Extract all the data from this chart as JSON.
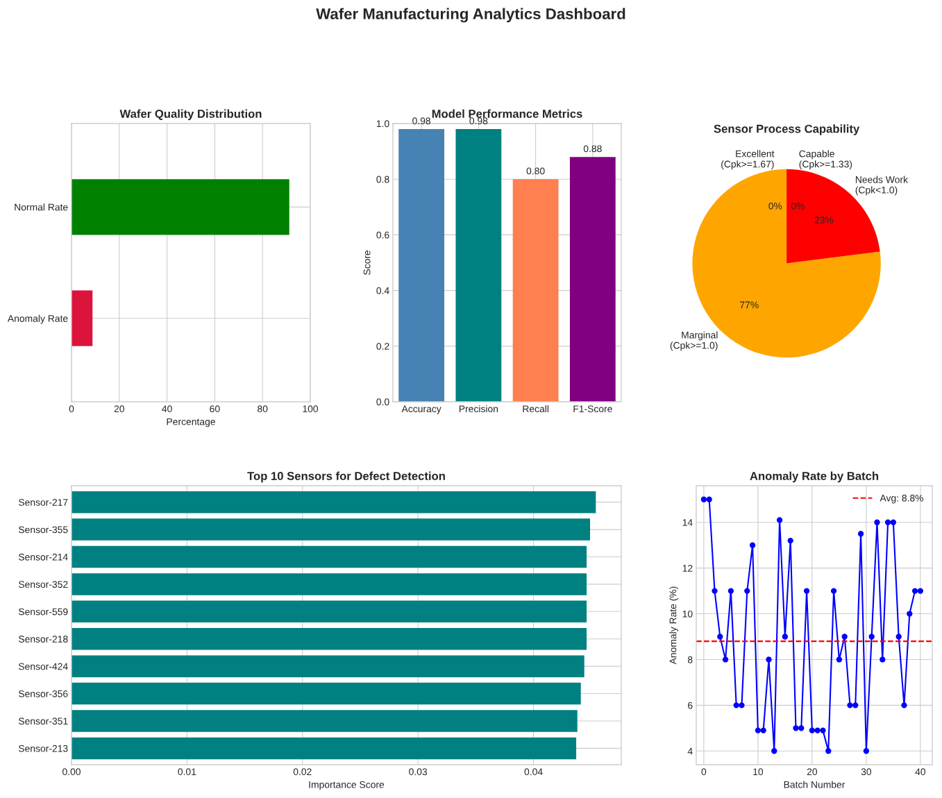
{
  "chart_data": [
    {
      "type": "bar",
      "annotations": [
        "Wafer Manufacturing Analytics Dashboard"
      ],
      "title": "Wafer Quality Distribution",
      "orientation": "horizontal",
      "categories": [
        "Normal Rate",
        "Anomaly Rate"
      ],
      "values": [
        91.2,
        8.8
      ],
      "colors": [
        "#008000",
        "#dc143c"
      ],
      "xlabel": "Percentage",
      "xlim": [
        0,
        100
      ],
      "xticks": [
        0,
        20,
        40,
        60,
        80,
        100
      ],
      "grid": true
    },
    {
      "type": "bar",
      "title": "Model Performance Metrics",
      "categories": [
        "Accuracy",
        "Precision",
        "Recall",
        "F1-Score"
      ],
      "values": [
        0.98,
        0.98,
        0.8,
        0.88
      ],
      "colors": [
        "#4682b4",
        "#008080",
        "#ff7f50",
        "#800080"
      ],
      "ylabel": "Score",
      "ylim": [
        0,
        1.0
      ],
      "yticks": [
        {
          "value": 0,
          "label": "0.0"
        },
        0.2,
        0.4,
        0.6,
        0.8,
        {
          "value": 1.0,
          "label": "1.0"
        }
      ],
      "value_labels": [
        "0.98",
        "0.98",
        "0.80",
        "0.88"
      ],
      "grid": true
    },
    {
      "type": "pie",
      "title": "Sensor Process Capability",
      "categories": [
        "Excellent\n(Cpk>=1.67)",
        "Capable\n(Cpk>=1.33)",
        "Marginal\n(Cpk>=1.0)",
        "Needs Work\n(Cpk<1.0)"
      ],
      "values": [
        0,
        0,
        77,
        23
      ],
      "colors": [
        "#008000",
        "#0000ff",
        "#ffa500",
        "#ff0000"
      ],
      "value_labels": [
        "0%",
        "0%",
        "77%",
        "23%"
      ]
    },
    {
      "type": "bar",
      "title": "Top 10 Sensors for Defect Detection",
      "orientation": "horizontal",
      "categories": [
        "Sensor-217",
        "Sensor-355",
        "Sensor-214",
        "Sensor-352",
        "Sensor-559",
        "Sensor-218",
        "Sensor-424",
        "Sensor-356",
        "Sensor-351",
        "Sensor-213"
      ],
      "values": [
        0.0454,
        0.0449,
        0.0446,
        0.0446,
        0.0446,
        0.0446,
        0.0444,
        0.0441,
        0.0438,
        0.0437
      ],
      "color": "#008080",
      "xlabel": "Importance Score",
      "xlim": [
        0,
        0.0476
      ],
      "xticks": [
        {
          "value": 0,
          "label": "0.00"
        },
        0.01,
        0.02,
        0.03,
        0.04
      ],
      "grid": true
    },
    {
      "type": "line",
      "title": "Anomaly Rate by Batch",
      "xlabel": "Batch Number",
      "ylabel": "Anomaly Rate (%)",
      "x": [
        0,
        1,
        2,
        3,
        4,
        5,
        6,
        7,
        8,
        9,
        10,
        11,
        12,
        13,
        14,
        15,
        16,
        17,
        18,
        19,
        20,
        21,
        22,
        23,
        24,
        25,
        26,
        27,
        28,
        29,
        30,
        31,
        32,
        33,
        34,
        35,
        36,
        37,
        38,
        39,
        40
      ],
      "values": [
        15,
        15,
        11,
        9,
        8,
        11,
        6,
        6,
        11,
        13,
        4.9,
        4.9,
        8,
        4,
        14.1,
        9,
        13.2,
        5,
        5,
        11,
        4.9,
        4.9,
        4.9,
        4,
        11,
        8,
        9,
        6,
        6,
        13.5,
        4,
        9,
        14,
        8,
        14,
        14,
        9,
        6,
        10,
        11,
        11
      ],
      "color": "#0000ff",
      "marker": "circle",
      "line_style": "solid",
      "xlim": [
        -1.4,
        42.2
      ],
      "xticks": [
        0,
        10,
        20,
        30,
        40
      ],
      "ylim": [
        3.4,
        15.6
      ],
      "yticks": [
        4,
        6,
        8,
        10,
        12,
        14
      ],
      "ref_lines": [
        {
          "axis": "y",
          "value": 8.8,
          "label": "Avg: 8.8%",
          "color": "#ff0000",
          "line_style": "dashed"
        }
      ],
      "legend": "top right",
      "grid": true
    }
  ]
}
